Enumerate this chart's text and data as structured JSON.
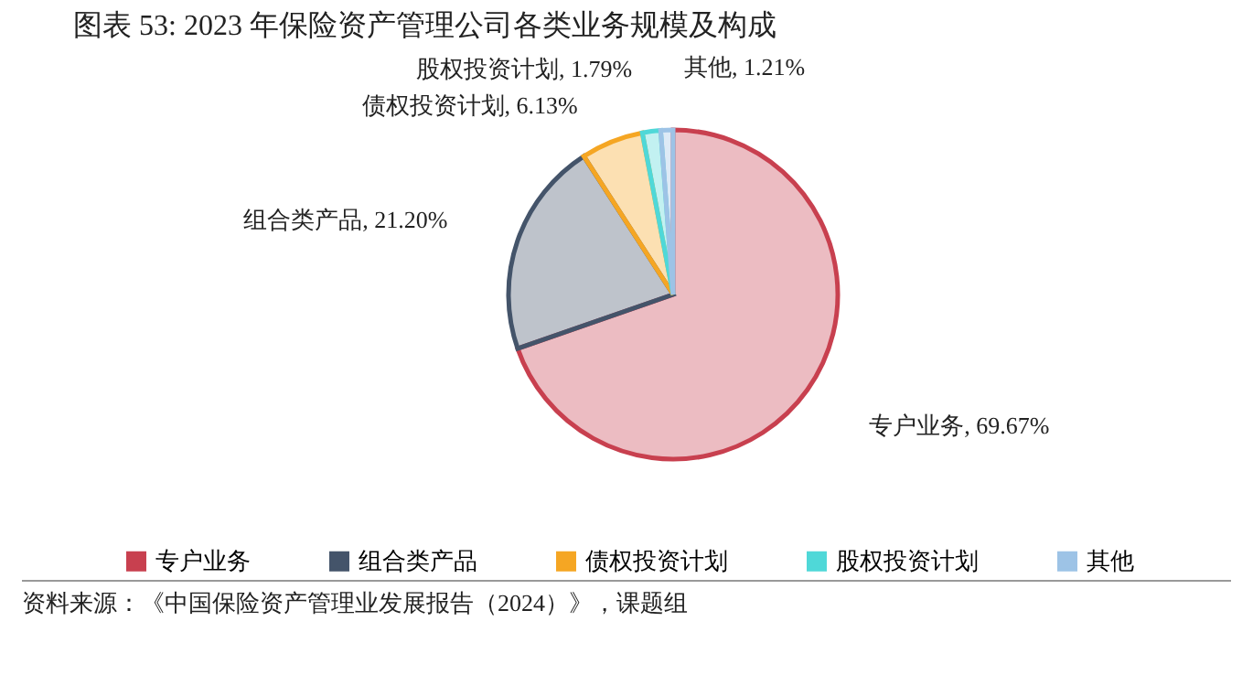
{
  "chart_data": {
    "type": "pie",
    "title": "图表 53: 2023 年保险资产管理公司各类业务规模及构成",
    "categories": [
      "专户业务",
      "组合类产品",
      "债权投资计划",
      "股权投资计划",
      "其他"
    ],
    "values": [
      69.67,
      21.2,
      6.13,
      1.79,
      1.21
    ],
    "value_labels": [
      "专户业务, 69.67%",
      "组合类产品, 21.20%",
      "债权投资计划, 6.13%",
      "股权投资计划, 1.79%",
      "其他, 1.21%"
    ],
    "colors": [
      "#c8404f",
      "#44546a",
      "#f5a623",
      "#4fd8d8",
      "#9dc3e6"
    ],
    "legend": "bottom",
    "annotations": [
      "资料来源：《中国保险资产管理业发展报告（2024）》，课题组"
    ]
  }
}
